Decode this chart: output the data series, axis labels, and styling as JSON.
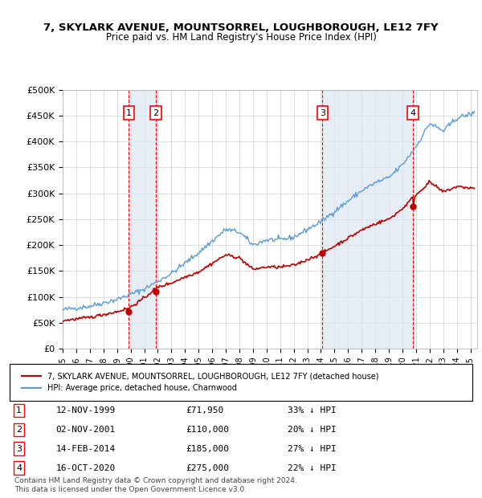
{
  "title": "7, SKYLARK AVENUE, MOUNTSORREL, LOUGHBOROUGH, LE12 7FY",
  "subtitle": "Price paid vs. HM Land Registry's House Price Index (HPI)",
  "ylabel": "",
  "ylim": [
    0,
    500000
  ],
  "yticks": [
    0,
    50000,
    100000,
    150000,
    200000,
    250000,
    300000,
    350000,
    400000,
    450000,
    500000
  ],
  "ytick_labels": [
    "£0",
    "£50K",
    "£100K",
    "£150K",
    "£200K",
    "£250K",
    "£300K",
    "£350K",
    "£400K",
    "£450K",
    "£500K"
  ],
  "xlim_start": 1995.0,
  "xlim_end": 2025.5,
  "sale_dates": [
    1999.87,
    2001.84,
    2014.12,
    2020.79
  ],
  "sale_prices": [
    71950,
    110000,
    185000,
    275000
  ],
  "sale_labels": [
    "1",
    "2",
    "3",
    "4"
  ],
  "sale_date_strs": [
    "12-NOV-1999",
    "02-NOV-2001",
    "14-FEB-2014",
    "16-OCT-2020"
  ],
  "sale_price_strs": [
    "£71,950",
    "£110,000",
    "£185,000",
    "£275,000"
  ],
  "sale_hpi_strs": [
    "33% ↓ HPI",
    "20% ↓ HPI",
    "27% ↓ HPI",
    "22% ↓ HPI"
  ],
  "hpi_color": "#5b9bd5",
  "price_color": "#c00000",
  "vline_color": "#ff0000",
  "marker_color": "#c00000",
  "shade_color": "#dce6f1",
  "grid_color": "#d0d0d0",
  "bg_color": "#ffffff",
  "legend_line1": "7, SKYLARK AVENUE, MOUNTSORREL, LOUGHBOROUGH, LE12 7FY (detached house)",
  "legend_line2": "HPI: Average price, detached house, Charnwood",
  "footnote": "Contains HM Land Registry data © Crown copyright and database right 2024.\nThis data is licensed under the Open Government Licence v3.0.",
  "xtick_years": [
    1995,
    1996,
    1997,
    1998,
    1999,
    2000,
    2001,
    2002,
    2003,
    2004,
    2005,
    2006,
    2007,
    2008,
    2009,
    2010,
    2011,
    2012,
    2013,
    2014,
    2015,
    2016,
    2017,
    2018,
    2019,
    2020,
    2021,
    2022,
    2023,
    2024,
    2025
  ]
}
